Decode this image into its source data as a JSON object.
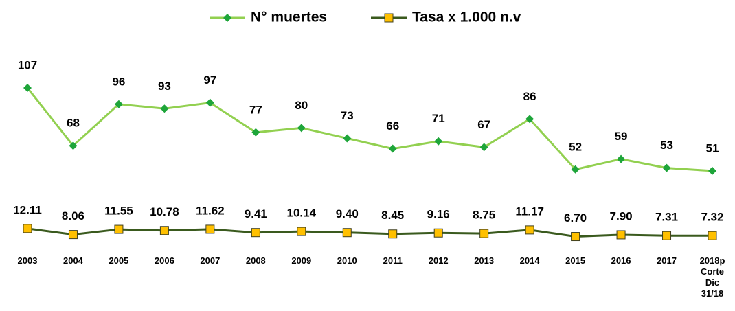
{
  "chart_data": {
    "type": "line",
    "categories": [
      "2003",
      "2004",
      "2005",
      "2006",
      "2007",
      "2008",
      "2009",
      "2010",
      "2011",
      "2012",
      "2013",
      "2014",
      "2015",
      "2016",
      "2017",
      "2018p\nCorte\nDic\n31/18"
    ],
    "series": [
      {
        "name": "N° muertes",
        "color": "#92d050",
        "marker": "diamond",
        "marker_color": "#1ea53a",
        "values": [
          107,
          68,
          96,
          93,
          97,
          77,
          80,
          73,
          66,
          71,
          67,
          86,
          52,
          59,
          53,
          51
        ]
      },
      {
        "name": "Tasa x 1.000 n.v",
        "color": "#3a5a1e",
        "marker": "square",
        "marker_color": "#ffc000",
        "values": [
          12.11,
          8.06,
          11.55,
          10.78,
          11.62,
          9.41,
          10.14,
          9.4,
          8.45,
          9.16,
          8.75,
          11.17,
          6.7,
          7.9,
          7.31,
          7.32
        ],
        "value_labels": [
          "12.11",
          "8.06",
          "11.55",
          "10.78",
          "11.62",
          "9.41",
          "10.14",
          "9.40",
          "8.45",
          "9.16",
          "8.75",
          "11.17",
          "6.70",
          "7.90",
          "7.31",
          "7.32"
        ]
      }
    ],
    "ylim": [
      0,
      120
    ],
    "legend": "top"
  }
}
